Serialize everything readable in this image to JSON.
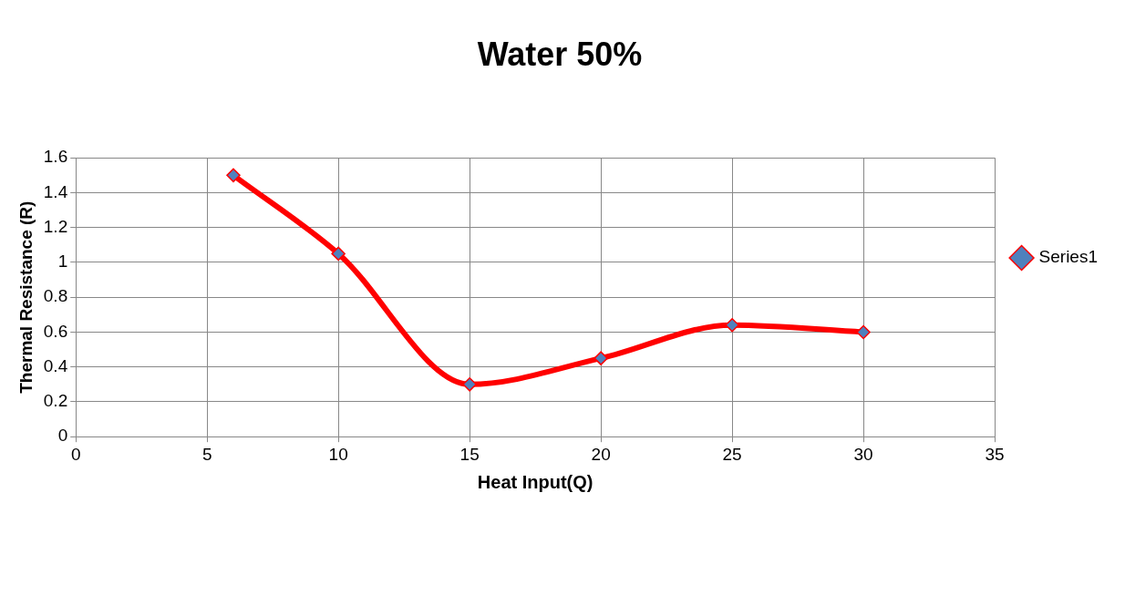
{
  "chart_data": {
    "type": "line",
    "title": "Water 50%",
    "xlabel": "Heat Input(Q)",
    "ylabel": "Thermal Resistance (R)",
    "x": [
      6,
      10,
      15,
      20,
      25,
      30
    ],
    "series": [
      {
        "name": "Series1",
        "color": "#ff0000",
        "values": [
          1.5,
          1.05,
          0.3,
          0.45,
          0.64,
          0.6
        ]
      }
    ],
    "xlim": [
      0,
      35
    ],
    "xticks": [
      0,
      5,
      10,
      15,
      20,
      25,
      30,
      35
    ],
    "ylim": [
      0,
      1.6
    ],
    "yticks": [
      0,
      0.2,
      0.4,
      0.6,
      0.8,
      1,
      1.2,
      1.4,
      1.6
    ],
    "grid": true,
    "legend": "right",
    "marker": "diamond",
    "line_style": "solid"
  }
}
